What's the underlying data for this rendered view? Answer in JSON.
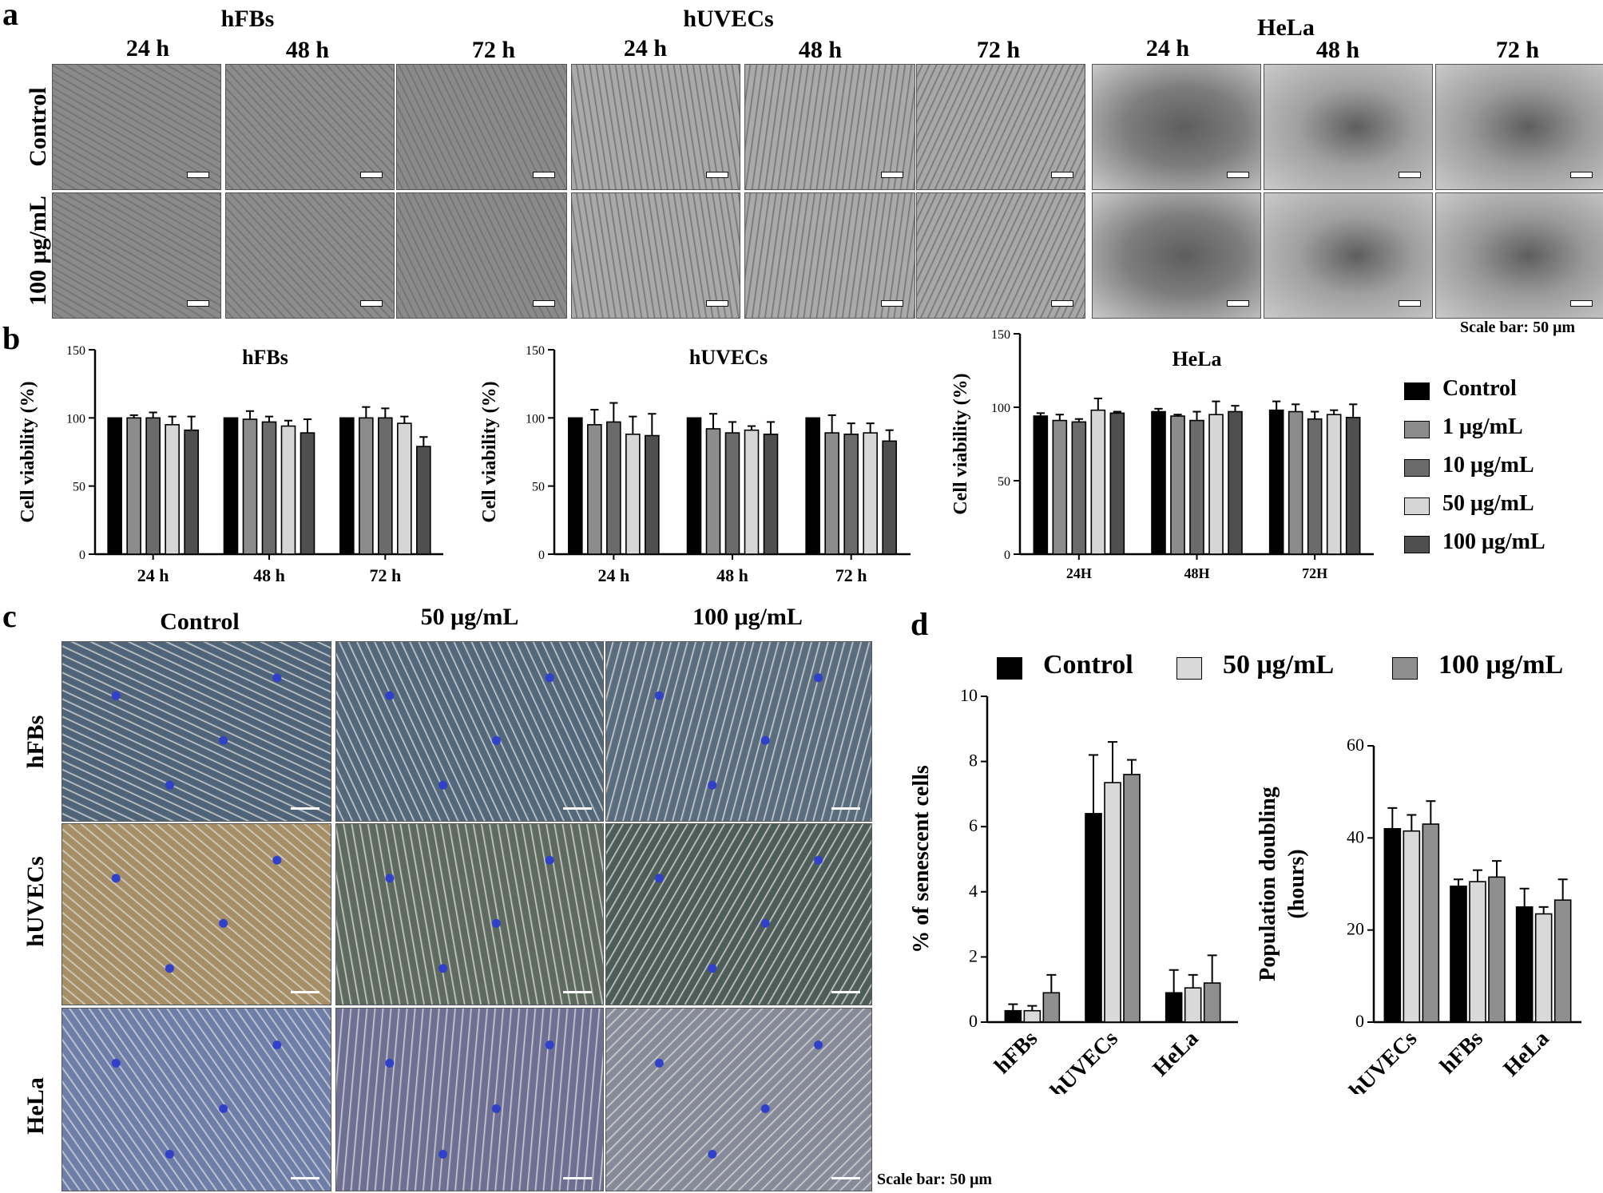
{
  "panel_a": {
    "letter": "a",
    "groups": [
      {
        "name": "hFBs",
        "times": [
          "24 h",
          "48 h",
          "72 h"
        ]
      },
      {
        "name": "hUVECs",
        "times": [
          "24 h",
          "48 h",
          "72 h"
        ]
      },
      {
        "name": "HeLa",
        "times": [
          "24 h",
          "48 h",
          "72 h"
        ]
      }
    ],
    "row_labels": [
      "Control",
      "100 μg/mL"
    ],
    "scale_bar": "Scale bar: 50 μm"
  },
  "panel_b": {
    "letter": "b",
    "legend": [
      "Control",
      "1 μg/mL",
      "10 μg/mL",
      "50 μg/mL",
      "100 μg/mL"
    ]
  },
  "panel_c": {
    "letter": "c",
    "col_labels": [
      "Control",
      "50 μg/mL",
      "100 μg/mL"
    ],
    "row_labels": [
      "hFBs",
      "hUVECs",
      "HeLa"
    ],
    "scale_bar": "Scale bar: 50 μm"
  },
  "panel_d": {
    "letter": "d",
    "legend": [
      "Control",
      "50 μg/mL",
      "100 μg/mL"
    ]
  },
  "colors": {
    "control": "#000000",
    "c1": "#8c8c8c",
    "c10": "#6b6b6b",
    "c50": "#d6d6d6",
    "c100": "#4f4f4f",
    "d_c50": "#d9d9d9",
    "d_c100": "#8f8f8f"
  },
  "chart_data": [
    {
      "id": "b1",
      "type": "bar",
      "title": "hFBs",
      "ylabel": "Cell viability (%)",
      "ylim": [
        0,
        150
      ],
      "yticks": [
        0,
        50,
        100,
        150
      ],
      "categories": [
        "24 h",
        "48 h",
        "72 h"
      ],
      "series": [
        {
          "name": "Control",
          "values": [
            100,
            100,
            100
          ],
          "err": [
            0,
            0,
            0
          ]
        },
        {
          "name": "1 μg/mL",
          "values": [
            100,
            99,
            100
          ],
          "err": [
            2,
            6,
            8
          ]
        },
        {
          "name": "10 μg/mL",
          "values": [
            100,
            97,
            100
          ],
          "err": [
            4,
            4,
            7
          ]
        },
        {
          "name": "50 μg/mL",
          "values": [
            95,
            94,
            96
          ],
          "err": [
            6,
            4,
            5
          ]
        },
        {
          "name": "100 μg/mL",
          "values": [
            91,
            89,
            79
          ],
          "err": [
            10,
            10,
            7
          ]
        }
      ]
    },
    {
      "id": "b2",
      "type": "bar",
      "title": "hUVECs",
      "ylabel": "Cell viability (%)",
      "ylim": [
        0,
        150
      ],
      "yticks": [
        0,
        50,
        100,
        150
      ],
      "categories": [
        "24 h",
        "48 h",
        "72 h"
      ],
      "series": [
        {
          "name": "Control",
          "values": [
            100,
            100,
            100
          ],
          "err": [
            0,
            0,
            0
          ]
        },
        {
          "name": "1 μg/mL",
          "values": [
            95,
            92,
            89
          ],
          "err": [
            11,
            11,
            13
          ]
        },
        {
          "name": "10 μg/mL",
          "values": [
            97,
            89,
            88
          ],
          "err": [
            14,
            8,
            8
          ]
        },
        {
          "name": "50 μg/mL",
          "values": [
            88,
            91,
            89
          ],
          "err": [
            13,
            3,
            7
          ]
        },
        {
          "name": "100 μg/mL",
          "values": [
            87,
            88,
            83
          ],
          "err": [
            16,
            9,
            8
          ]
        }
      ]
    },
    {
      "id": "b3",
      "type": "bar",
      "title": "HeLa",
      "ylabel": "Cell viability (%)",
      "ylim": [
        0,
        150
      ],
      "yticks": [
        0,
        50,
        100,
        150
      ],
      "categories": [
        "24H",
        "48H",
        "72H"
      ],
      "series": [
        {
          "name": "Control",
          "values": [
            94,
            97,
            98
          ],
          "err": [
            2,
            2,
            6
          ]
        },
        {
          "name": "1 μg/mL",
          "values": [
            91,
            94,
            97
          ],
          "err": [
            4,
            1,
            5
          ]
        },
        {
          "name": "10 μg/mL",
          "values": [
            90,
            91,
            92
          ],
          "err": [
            2,
            6,
            5
          ]
        },
        {
          "name": "50 μg/mL",
          "values": [
            98,
            95,
            95
          ],
          "err": [
            8,
            9,
            3
          ]
        },
        {
          "name": "100 μg/mL",
          "values": [
            96,
            97,
            93
          ],
          "err": [
            1,
            4,
            9
          ]
        }
      ]
    },
    {
      "id": "d1",
      "type": "bar",
      "title": "",
      "ylabel": "% of senescent cells",
      "ylim": [
        0,
        10
      ],
      "yticks": [
        0,
        2,
        4,
        6,
        8,
        10
      ],
      "categories": [
        "hFBs",
        "hUVECs",
        "HeLa"
      ],
      "series": [
        {
          "name": "Control",
          "values": [
            0.35,
            6.4,
            0.9
          ],
          "err": [
            0.2,
            1.8,
            0.7
          ]
        },
        {
          "name": "50 μg/mL",
          "values": [
            0.35,
            7.35,
            1.05
          ],
          "err": [
            0.15,
            1.25,
            0.4
          ]
        },
        {
          "name": "100 μg/mL",
          "values": [
            0.9,
            7.6,
            1.2
          ],
          "err": [
            0.55,
            0.45,
            0.85
          ]
        }
      ]
    },
    {
      "id": "d2",
      "type": "bar",
      "title": "",
      "ylabel": "Population doubling\n(hours)",
      "ylim": [
        0,
        60
      ],
      "yticks": [
        0,
        20,
        40,
        60
      ],
      "categories": [
        "hUVECs",
        "hFBs",
        "HeLa"
      ],
      "series": [
        {
          "name": "Control",
          "values": [
            42,
            29.5,
            25
          ],
          "err": [
            4.5,
            1.5,
            4
          ]
        },
        {
          "name": "50 μg/mL",
          "values": [
            41.5,
            30.5,
            23.5
          ],
          "err": [
            3.5,
            2.5,
            1.5
          ]
        },
        {
          "name": "100 μg/mL",
          "values": [
            43,
            31.5,
            26.5
          ],
          "err": [
            5,
            3.5,
            4.5
          ]
        }
      ]
    }
  ]
}
